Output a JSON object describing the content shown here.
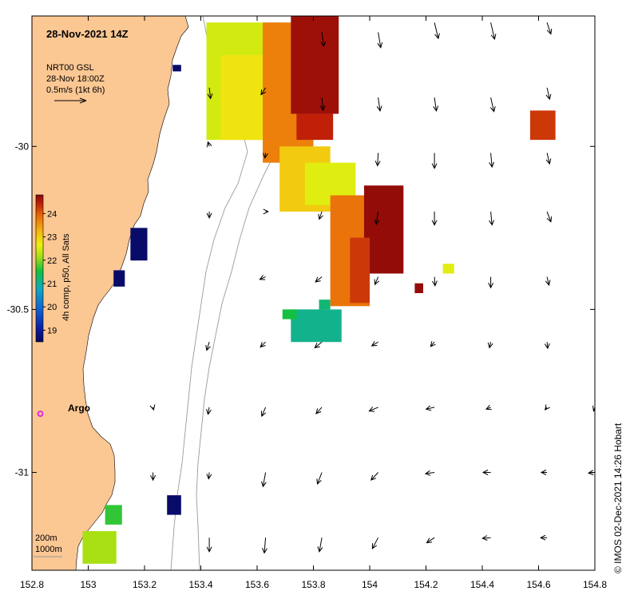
{
  "title": "28-Nov-2021 14Z",
  "current_info": {
    "model": "NRT00 GSL",
    "time": "28-Nov 18:00Z",
    "scale": "0.5m/s (1kt 6h)"
  },
  "colorbar": {
    "label": "4h comp, p50, All Sats",
    "ticks": [
      "24",
      "23",
      "22",
      "21",
      "20",
      "19"
    ],
    "range": [
      18.5,
      24.8
    ]
  },
  "argo_label": "Argo",
  "contours": {
    "shallow": "200m",
    "deep": "1000m"
  },
  "credit": "© IMOS 02-Dec-2021 14:26 Hobart",
  "axes": {
    "x_ticks": [
      "152.8",
      "153",
      "153.2",
      "153.4",
      "153.6",
      "153.8",
      "154",
      "154.2",
      "154.4",
      "154.6",
      "154.8"
    ],
    "y_ticks": [
      "-30",
      "-30.5",
      "-31"
    ],
    "x_range": [
      152.8,
      154.8
    ],
    "y_range": [
      -31.3,
      -29.6
    ]
  },
  "colors": {
    "land": "#fbc793",
    "contour": "#9a9a9a",
    "argo": "#e020e0",
    "background": "#ffffff"
  },
  "sst_patches": [
    {
      "lon": [
        153.42,
        153.67
      ],
      "lat": [
        -29.62,
        -29.98
      ],
      "temp": 22.3
    },
    {
      "lon": [
        153.47,
        153.63
      ],
      "lat": [
        -29.72,
        -29.98
      ],
      "temp": 22.6
    },
    {
      "lon": [
        153.62,
        153.8
      ],
      "lat": [
        -29.62,
        -30.05
      ],
      "temp": 23.4
    },
    {
      "lon": [
        153.72,
        153.89
      ],
      "lat": [
        -29.6,
        -29.9
      ],
      "temp": 24.6
    },
    {
      "lon": [
        153.74,
        153.87
      ],
      "lat": [
        -29.9,
        -29.98
      ],
      "temp": 24.2
    },
    {
      "lon": [
        153.68,
        153.86
      ],
      "lat": [
        -30.0,
        -30.2
      ],
      "temp": 22.8
    },
    {
      "lon": [
        153.77,
        153.95
      ],
      "lat": [
        -30.05,
        -30.18
      ],
      "temp": 22.4
    },
    {
      "lon": [
        153.86,
        154.0
      ],
      "lat": [
        -30.15,
        -30.49
      ],
      "temp": 23.5
    },
    {
      "lon": [
        153.98,
        154.12
      ],
      "lat": [
        -30.12,
        -30.39
      ],
      "temp": 24.7
    },
    {
      "lon": [
        153.93,
        154.0
      ],
      "lat": [
        -30.28,
        -30.48
      ],
      "temp": 24.0
    },
    {
      "lon": [
        153.72,
        153.9
      ],
      "lat": [
        -30.5,
        -30.6
      ],
      "temp": 21.2
    },
    {
      "lon": [
        153.69,
        153.74
      ],
      "lat": [
        -30.5,
        -30.53
      ],
      "temp": 21.5
    },
    {
      "lon": [
        153.82,
        153.86
      ],
      "lat": [
        -30.47,
        -30.5
      ],
      "temp": 21.3
    },
    {
      "lon": [
        154.57,
        154.66
      ],
      "lat": [
        -29.89,
        -29.98
      ],
      "temp": 24.0
    },
    {
      "lon": [
        154.26,
        154.3
      ],
      "lat": [
        -30.36,
        -30.39
      ],
      "temp": 22.4
    },
    {
      "lon": [
        154.16,
        154.19
      ],
      "lat": [
        -30.42,
        -30.45
      ],
      "temp": 24.7
    },
    {
      "lon": [
        153.15,
        153.21
      ],
      "lat": [
        -30.25,
        -30.35
      ],
      "temp": 18.6
    },
    {
      "lon": [
        153.09,
        153.13
      ],
      "lat": [
        -30.38,
        -30.43
      ],
      "temp": 18.6
    },
    {
      "lon": [
        153.28,
        153.33
      ],
      "lat": [
        -31.07,
        -31.13
      ],
      "temp": 18.6
    },
    {
      "lon": [
        153.3,
        153.33
      ],
      "lat": [
        -29.75,
        -29.77
      ],
      "temp": 18.6
    },
    {
      "lon": [
        152.98,
        153.1
      ],
      "lat": [
        -31.18,
        -31.28
      ],
      "temp": 22.0
    },
    {
      "lon": [
        153.06,
        153.12
      ],
      "lat": [
        -31.1,
        -31.16
      ],
      "temp": 21.6
    }
  ],
  "argo": {
    "lon": 152.83,
    "lat": -30.82
  },
  "current_vectors": [
    {
      "lon": 153.43,
      "lat": -29.82,
      "u": 0.02,
      "v": -0.17
    },
    {
      "lon": 153.63,
      "lat": -29.82,
      "u": -0.07,
      "v": -0.11
    },
    {
      "lon": 153.83,
      "lat": -29.65,
      "u": 0.03,
      "v": -0.22
    },
    {
      "lon": 154.03,
      "lat": -29.65,
      "u": 0.04,
      "v": -0.24
    },
    {
      "lon": 154.23,
      "lat": -29.62,
      "u": 0.06,
      "v": -0.25
    },
    {
      "lon": 154.43,
      "lat": -29.62,
      "u": 0.06,
      "v": -0.26
    },
    {
      "lon": 154.63,
      "lat": -29.62,
      "u": 0.06,
      "v": -0.18
    },
    {
      "lon": 153.43,
      "lat": -30.0,
      "u": -0.02,
      "v": 0.07
    },
    {
      "lon": 153.63,
      "lat": -30.02,
      "u": -0.01,
      "v": -0.08
    },
    {
      "lon": 153.83,
      "lat": -29.85,
      "u": 0.02,
      "v": -0.2
    },
    {
      "lon": 154.03,
      "lat": -29.85,
      "u": 0.03,
      "v": -0.21
    },
    {
      "lon": 154.23,
      "lat": -29.85,
      "u": 0.03,
      "v": -0.21
    },
    {
      "lon": 154.43,
      "lat": -29.85,
      "u": 0.05,
      "v": -0.22
    },
    {
      "lon": 154.63,
      "lat": -29.82,
      "u": 0.04,
      "v": -0.18
    },
    {
      "lon": 154.03,
      "lat": -30.02,
      "u": -0.01,
      "v": -0.2
    },
    {
      "lon": 154.23,
      "lat": -30.02,
      "u": 0.0,
      "v": -0.24
    },
    {
      "lon": 154.43,
      "lat": -30.02,
      "u": 0.02,
      "v": -0.22
    },
    {
      "lon": 154.63,
      "lat": -30.02,
      "u": 0.04,
      "v": -0.17
    },
    {
      "lon": 153.43,
      "lat": -30.2,
      "u": 0.0,
      "v": -0.1
    },
    {
      "lon": 153.63,
      "lat": -30.2,
      "u": 0.04,
      "v": 0.0
    },
    {
      "lon": 153.83,
      "lat": -30.2,
      "u": -0.04,
      "v": -0.12
    },
    {
      "lon": 154.03,
      "lat": -30.2,
      "u": -0.03,
      "v": -0.2
    },
    {
      "lon": 154.23,
      "lat": -30.2,
      "u": 0.0,
      "v": -0.21
    },
    {
      "lon": 154.43,
      "lat": -30.2,
      "u": 0.02,
      "v": -0.21
    },
    {
      "lon": 154.63,
      "lat": -30.2,
      "u": 0.06,
      "v": -0.16
    },
    {
      "lon": 153.63,
      "lat": -30.4,
      "u": -0.09,
      "v": -0.04
    },
    {
      "lon": 153.83,
      "lat": -30.4,
      "u": -0.1,
      "v": -0.08
    },
    {
      "lon": 154.03,
      "lat": -30.4,
      "u": -0.05,
      "v": -0.12
    },
    {
      "lon": 154.23,
      "lat": -30.4,
      "u": 0.01,
      "v": -0.14
    },
    {
      "lon": 154.43,
      "lat": -30.4,
      "u": 0.0,
      "v": -0.17
    },
    {
      "lon": 154.63,
      "lat": -30.4,
      "u": 0.03,
      "v": -0.13
    },
    {
      "lon": 153.43,
      "lat": -30.6,
      "u": -0.04,
      "v": -0.13
    },
    {
      "lon": 153.63,
      "lat": -30.6,
      "u": -0.08,
      "v": -0.08
    },
    {
      "lon": 153.83,
      "lat": -30.6,
      "u": -0.11,
      "v": -0.09
    },
    {
      "lon": 154.03,
      "lat": -30.6,
      "u": -0.1,
      "v": -0.06
    },
    {
      "lon": 154.23,
      "lat": -30.6,
      "u": -0.06,
      "v": -0.07
    },
    {
      "lon": 154.43,
      "lat": -30.6,
      "u": -0.02,
      "v": -0.09
    },
    {
      "lon": 154.63,
      "lat": -30.6,
      "u": 0.01,
      "v": -0.1
    },
    {
      "lon": 153.23,
      "lat": -30.8,
      "u": 0.01,
      "v": -0.04
    },
    {
      "lon": 153.43,
      "lat": -30.8,
      "u": -0.02,
      "v": -0.11
    },
    {
      "lon": 153.63,
      "lat": -30.8,
      "u": -0.06,
      "v": -0.14
    },
    {
      "lon": 153.83,
      "lat": -30.8,
      "u": -0.09,
      "v": -0.1
    },
    {
      "lon": 154.03,
      "lat": -30.8,
      "u": -0.14,
      "v": -0.06
    },
    {
      "lon": 154.23,
      "lat": -30.8,
      "u": -0.13,
      "v": -0.03
    },
    {
      "lon": 154.43,
      "lat": -30.8,
      "u": -0.07,
      "v": -0.03
    },
    {
      "lon": 154.63,
      "lat": -30.8,
      "u": -0.03,
      "v": -0.04
    },
    {
      "lon": 153.23,
      "lat": -31.0,
      "u": 0.0,
      "v": -0.12
    },
    {
      "lon": 153.43,
      "lat": -31.0,
      "u": -0.01,
      "v": -0.1
    },
    {
      "lon": 153.63,
      "lat": -31.0,
      "u": -0.04,
      "v": -0.22
    },
    {
      "lon": 153.83,
      "lat": -31.0,
      "u": -0.07,
      "v": -0.18
    },
    {
      "lon": 154.03,
      "lat": -31.0,
      "u": -0.11,
      "v": -0.12
    },
    {
      "lon": 154.23,
      "lat": -31.0,
      "u": -0.14,
      "v": -0.02
    },
    {
      "lon": 154.43,
      "lat": -31.0,
      "u": -0.12,
      "v": 0.0
    },
    {
      "lon": 154.63,
      "lat": -31.0,
      "u": -0.09,
      "v": 0.0
    },
    {
      "lon": 153.43,
      "lat": -31.2,
      "u": 0.0,
      "v": -0.22
    },
    {
      "lon": 153.63,
      "lat": -31.2,
      "u": -0.02,
      "v": -0.24
    },
    {
      "lon": 153.83,
      "lat": -31.2,
      "u": -0.04,
      "v": -0.22
    },
    {
      "lon": 154.03,
      "lat": -31.2,
      "u": -0.09,
      "v": -0.17
    },
    {
      "lon": 154.23,
      "lat": -31.2,
      "u": -0.12,
      "v": -0.08
    },
    {
      "lon": 154.43,
      "lat": -31.2,
      "u": -0.13,
      "v": -0.01
    },
    {
      "lon": 154.63,
      "lat": -31.2,
      "u": -0.1,
      "v": 0.0
    },
    {
      "lon": 154.8,
      "lat": -31.0,
      "u": -0.1,
      "v": -0.01
    },
    {
      "lon": 154.8,
      "lat": -30.8,
      "u": -0.02,
      "v": -0.06
    }
  ]
}
